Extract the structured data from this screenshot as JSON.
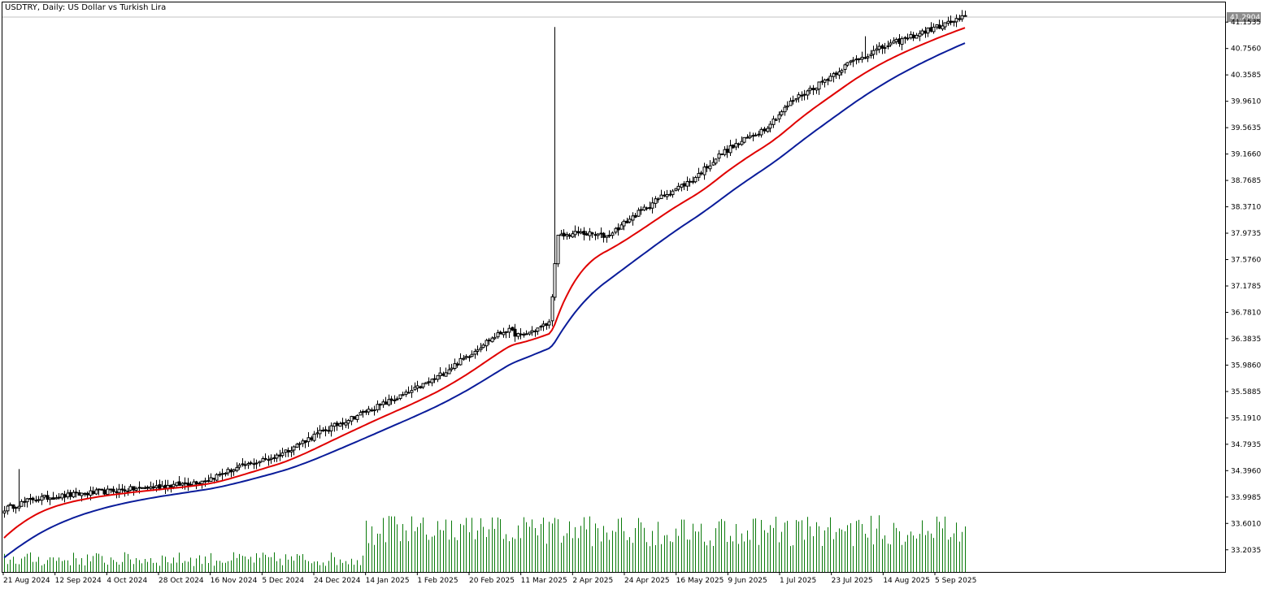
{
  "chart_data": {
    "type": "candlestick",
    "title": "USDTRY, Daily:  US Dollar vs Turkish Lira",
    "current_price": "41.2904",
    "y_tick_labels": [
      "41.1535",
      "40.7560",
      "40.3585",
      "39.9610",
      "39.5635",
      "39.1660",
      "38.7685",
      "38.3710",
      "37.9735",
      "37.5760",
      "37.1785",
      "36.7810",
      "36.3835",
      "35.9860",
      "35.5885",
      "35.1910",
      "34.7935",
      "34.3960",
      "33.9985",
      "33.6010",
      "33.2035"
    ],
    "x_tick_labels": [
      "21 Aug 2024",
      "12 Sep 2024",
      "4 Oct 2024",
      "28 Oct 2024",
      "16 Nov 2024",
      "5 Dec 2024",
      "24 Dec 2024",
      "14 Jan 2025",
      "1 Feb 2025",
      "20 Feb 2025",
      "11 Mar 2025",
      "2 Apr 2025",
      "24 Apr 2025",
      "16 May 2025",
      "9 Jun 2025",
      "1 Jul 2025",
      "23 Jul 2025",
      "14 Aug 2025",
      "5 Sep 2025"
    ],
    "ylim": [
      32.87,
      41.45
    ],
    "grid": false,
    "close_anchors": [
      [
        0,
        33.82
      ],
      [
        10,
        33.97
      ],
      [
        30,
        34.06
      ],
      [
        45,
        34.12
      ],
      [
        60,
        34.18
      ],
      [
        70,
        34.25
      ],
      [
        80,
        34.42
      ],
      [
        95,
        34.62
      ],
      [
        110,
        34.97
      ],
      [
        125,
        35.27
      ],
      [
        140,
        35.55
      ],
      [
        150,
        35.78
      ],
      [
        160,
        36.08
      ],
      [
        168,
        36.34
      ],
      [
        175,
        36.52
      ],
      [
        180,
        36.42
      ],
      [
        190,
        36.62
      ],
      [
        193,
        37.92
      ],
      [
        200,
        37.98
      ],
      [
        210,
        37.93
      ],
      [
        220,
        38.25
      ],
      [
        230,
        38.55
      ],
      [
        240,
        38.78
      ],
      [
        250,
        39.18
      ],
      [
        265,
        39.55
      ],
      [
        275,
        39.98
      ],
      [
        285,
        40.25
      ],
      [
        295,
        40.55
      ],
      [
        305,
        40.75
      ],
      [
        315,
        40.92
      ],
      [
        325,
        41.08
      ],
      [
        335,
        41.23
      ]
    ],
    "series": [
      {
        "name": "MA red",
        "color": "#e00000",
        "start": 33.34,
        "lag": 0.09
      },
      {
        "name": "MA blue",
        "color": "#0a1c9a",
        "start": 33.05,
        "lag": 0.045
      }
    ],
    "volume": {
      "color": "#0a7a0a",
      "max_value": 100
    }
  }
}
